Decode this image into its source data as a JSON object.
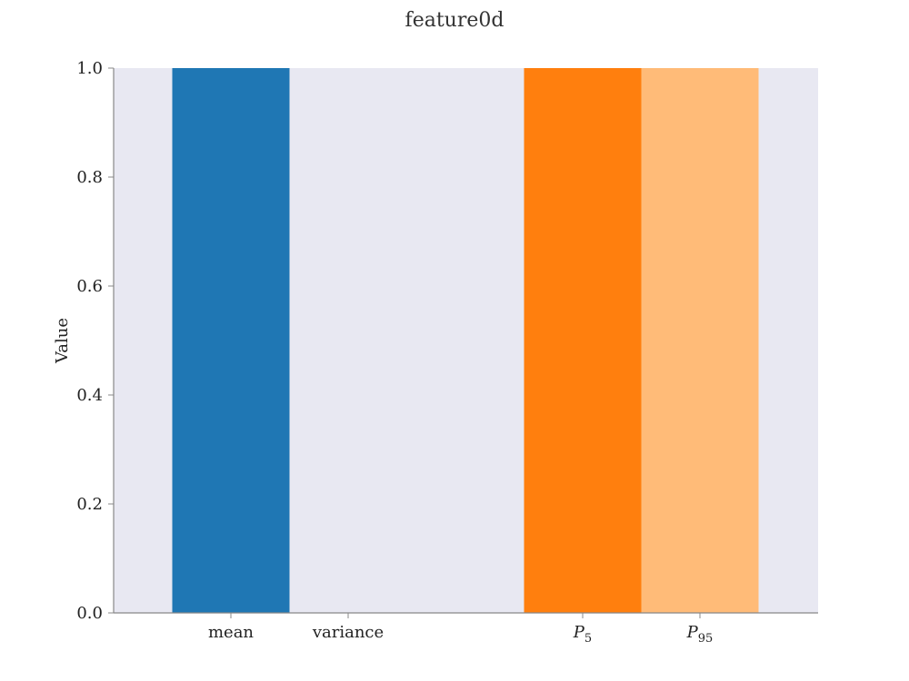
{
  "chart_data": {
    "type": "bar",
    "title": "feature0d",
    "xlabel": "",
    "ylabel": "Value",
    "ylim": [
      0,
      1.0
    ],
    "yticks": [
      "0.0",
      "0.2",
      "0.4",
      "0.6",
      "0.8",
      "1.0"
    ],
    "categories": [
      {
        "base": "mean",
        "sub": ""
      },
      {
        "base": "variance",
        "sub": ""
      },
      {
        "base": "",
        "sub": ""
      },
      {
        "base": "P",
        "sub": "5"
      },
      {
        "base": "P",
        "sub": "95"
      }
    ],
    "values": [
      1.0,
      0.0,
      0.0,
      1.0,
      1.0
    ],
    "colors": [
      "#1f77b4",
      "#1f77b4",
      "#1f77b4",
      "#ff7f0e",
      "#ffbb78"
    ],
    "background": "#e8e8f2",
    "grid": false,
    "legend": "none"
  }
}
